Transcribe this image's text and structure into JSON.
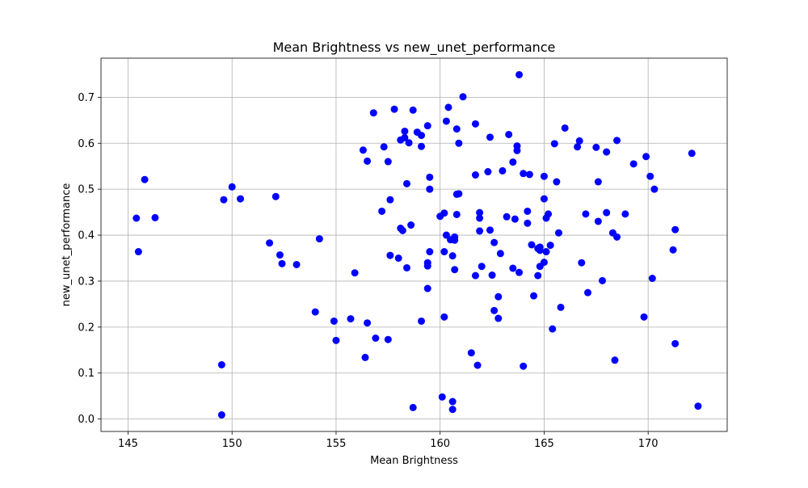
{
  "chart_data": {
    "type": "scatter",
    "title": "Mean Brightness vs new_unet_performance",
    "xlabel": "Mean Brightness",
    "ylabel": "new_unet_performance",
    "xlim": [
      143.7,
      173.8
    ],
    "ylim": [
      -0.027,
      0.785
    ],
    "xticks": [
      145,
      150,
      155,
      160,
      165,
      170
    ],
    "yticks": [
      0.0,
      0.1,
      0.2,
      0.3,
      0.4,
      0.5,
      0.6,
      0.7
    ],
    "xtick_labels": [
      "145",
      "150",
      "155",
      "160",
      "165",
      "170"
    ],
    "ytick_labels": [
      "0.0",
      "0.1",
      "0.2",
      "0.3",
      "0.4",
      "0.5",
      "0.6",
      "0.7"
    ],
    "grid": true,
    "marker_color": "#0000ff",
    "points": [
      [
        145.4,
        0.437
      ],
      [
        145.5,
        0.364
      ],
      [
        145.8,
        0.521
      ],
      [
        146.3,
        0.438
      ],
      [
        149.5,
        0.118
      ],
      [
        149.5,
        0.009
      ],
      [
        149.6,
        0.477
      ],
      [
        150.0,
        0.505
      ],
      [
        150.4,
        0.479
      ],
      [
        151.8,
        0.383
      ],
      [
        152.1,
        0.484
      ],
      [
        152.3,
        0.357
      ],
      [
        152.4,
        0.338
      ],
      [
        153.1,
        0.336
      ],
      [
        154.0,
        0.233
      ],
      [
        154.2,
        0.392
      ],
      [
        154.9,
        0.213
      ],
      [
        155.0,
        0.171
      ],
      [
        155.7,
        0.218
      ],
      [
        155.9,
        0.318
      ],
      [
        156.3,
        0.585
      ],
      [
        156.4,
        0.134
      ],
      [
        156.5,
        0.209
      ],
      [
        156.5,
        0.561
      ],
      [
        156.8,
        0.666
      ],
      [
        156.9,
        0.176
      ],
      [
        157.2,
        0.452
      ],
      [
        157.3,
        0.592
      ],
      [
        157.5,
        0.173
      ],
      [
        157.5,
        0.56
      ],
      [
        157.6,
        0.477
      ],
      [
        157.6,
        0.356
      ],
      [
        157.8,
        0.674
      ],
      [
        158.0,
        0.35
      ],
      [
        158.1,
        0.607
      ],
      [
        158.1,
        0.415
      ],
      [
        158.2,
        0.41
      ],
      [
        158.3,
        0.612
      ],
      [
        158.3,
        0.626
      ],
      [
        158.4,
        0.329
      ],
      [
        158.4,
        0.512
      ],
      [
        158.5,
        0.601
      ],
      [
        158.6,
        0.422
      ],
      [
        158.7,
        0.672
      ],
      [
        158.7,
        0.025
      ],
      [
        158.9,
        0.624
      ],
      [
        159.1,
        0.213
      ],
      [
        159.1,
        0.593
      ],
      [
        159.1,
        0.617
      ],
      [
        159.4,
        0.638
      ],
      [
        159.4,
        0.284
      ],
      [
        159.4,
        0.34
      ],
      [
        159.4,
        0.333
      ],
      [
        159.5,
        0.5
      ],
      [
        159.5,
        0.526
      ],
      [
        159.5,
        0.364
      ],
      [
        160.0,
        0.441
      ],
      [
        160.1,
        0.048
      ],
      [
        160.2,
        0.364
      ],
      [
        160.2,
        0.448
      ],
      [
        160.2,
        0.222
      ],
      [
        160.3,
        0.4
      ],
      [
        160.3,
        0.648
      ],
      [
        160.4,
        0.678
      ],
      [
        160.5,
        0.39
      ],
      [
        160.6,
        0.355
      ],
      [
        160.6,
        0.021
      ],
      [
        160.6,
        0.038
      ],
      [
        160.7,
        0.325
      ],
      [
        160.7,
        0.396
      ],
      [
        160.7,
        0.389
      ],
      [
        160.8,
        0.445
      ],
      [
        160.8,
        0.631
      ],
      [
        160.8,
        0.489
      ],
      [
        160.9,
        0.49
      ],
      [
        160.9,
        0.6
      ],
      [
        161.1,
        0.701
      ],
      [
        161.5,
        0.144
      ],
      [
        161.7,
        0.531
      ],
      [
        161.7,
        0.642
      ],
      [
        161.7,
        0.312
      ],
      [
        161.8,
        0.117
      ],
      [
        161.9,
        0.437
      ],
      [
        161.9,
        0.449
      ],
      [
        161.9,
        0.409
      ],
      [
        162.0,
        0.332
      ],
      [
        162.3,
        0.538
      ],
      [
        162.4,
        0.613
      ],
      [
        162.4,
        0.411
      ],
      [
        162.5,
        0.313
      ],
      [
        162.6,
        0.384
      ],
      [
        162.6,
        0.236
      ],
      [
        162.8,
        0.266
      ],
      [
        162.8,
        0.219
      ],
      [
        162.9,
        0.36
      ],
      [
        163.0,
        0.54
      ],
      [
        163.2,
        0.44
      ],
      [
        163.3,
        0.619
      ],
      [
        163.5,
        0.328
      ],
      [
        163.5,
        0.559
      ],
      [
        163.6,
        0.435
      ],
      [
        163.7,
        0.594
      ],
      [
        163.7,
        0.584
      ],
      [
        163.8,
        0.749
      ],
      [
        163.8,
        0.319
      ],
      [
        164.0,
        0.534
      ],
      [
        164.0,
        0.115
      ],
      [
        164.2,
        0.452
      ],
      [
        164.2,
        0.426
      ],
      [
        164.3,
        0.532
      ],
      [
        164.4,
        0.379
      ],
      [
        164.5,
        0.268
      ],
      [
        164.7,
        0.371
      ],
      [
        164.7,
        0.312
      ],
      [
        164.8,
        0.374
      ],
      [
        164.8,
        0.367
      ],
      [
        164.8,
        0.332
      ],
      [
        165.0,
        0.528
      ],
      [
        165.0,
        0.479
      ],
      [
        165.0,
        0.341
      ],
      [
        165.1,
        0.437
      ],
      [
        165.1,
        0.364
      ],
      [
        165.2,
        0.446
      ],
      [
        165.3,
        0.378
      ],
      [
        165.4,
        0.196
      ],
      [
        165.5,
        0.599
      ],
      [
        165.6,
        0.516
      ],
      [
        165.7,
        0.405
      ],
      [
        165.8,
        0.243
      ],
      [
        166.0,
        0.633
      ],
      [
        166.6,
        0.592
      ],
      [
        166.7,
        0.605
      ],
      [
        166.8,
        0.34
      ],
      [
        167.0,
        0.446
      ],
      [
        167.1,
        0.275
      ],
      [
        167.5,
        0.591
      ],
      [
        167.6,
        0.43
      ],
      [
        167.6,
        0.516
      ],
      [
        167.8,
        0.301
      ],
      [
        168.0,
        0.581
      ],
      [
        168.0,
        0.449
      ],
      [
        168.3,
        0.405
      ],
      [
        168.4,
        0.128
      ],
      [
        168.5,
        0.396
      ],
      [
        168.5,
        0.606
      ],
      [
        168.9,
        0.446
      ],
      [
        169.3,
        0.555
      ],
      [
        169.8,
        0.222
      ],
      [
        169.9,
        0.571
      ],
      [
        170.1,
        0.528
      ],
      [
        170.2,
        0.306
      ],
      [
        170.3,
        0.5
      ],
      [
        171.2,
        0.368
      ],
      [
        171.3,
        0.412
      ],
      [
        171.3,
        0.164
      ],
      [
        172.1,
        0.578
      ],
      [
        172.4,
        0.028
      ]
    ]
  }
}
